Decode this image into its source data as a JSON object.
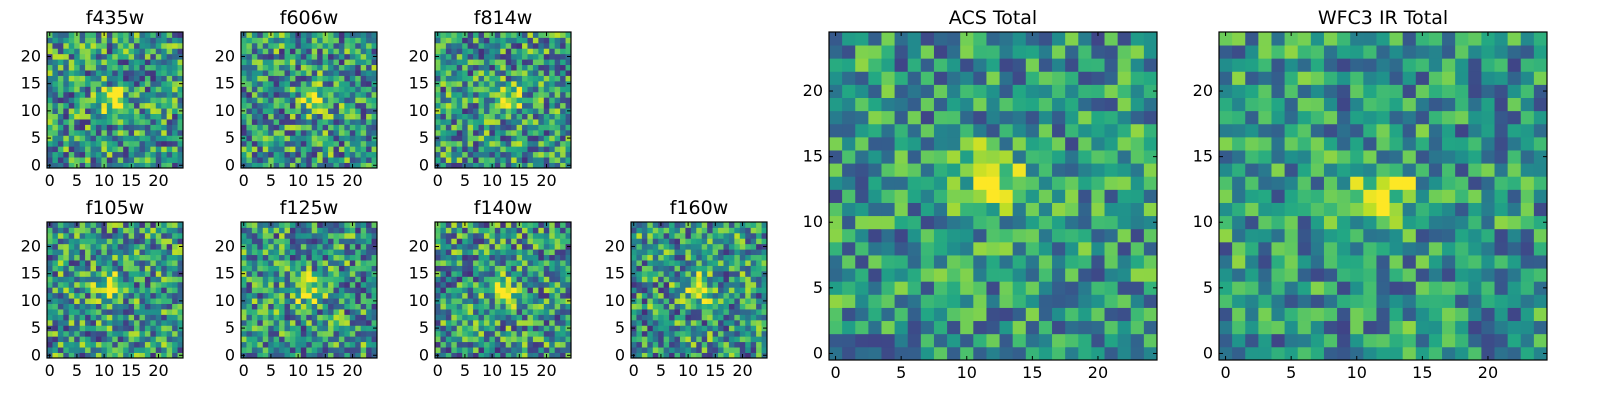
{
  "figure": {
    "background": "#ffffff",
    "colormap": "viridis"
  },
  "chart_data": [
    {
      "type": "heatmap",
      "title": "f435w",
      "xlim": [
        -0.5,
        24.5
      ],
      "ylim": [
        -0.5,
        24.5
      ],
      "xticks": [
        "0",
        "5",
        "10",
        "15",
        "20"
      ],
      "yticks": [
        "0",
        "5",
        "10",
        "15",
        "20"
      ],
      "grid": false,
      "peak": [
        12,
        12
      ],
      "noise": 0.55,
      "seed": 11
    },
    {
      "type": "heatmap",
      "title": "f606w",
      "xlim": [
        -0.5,
        24.5
      ],
      "ylim": [
        -0.5,
        24.5
      ],
      "xticks": [
        "0",
        "5",
        "10",
        "15",
        "20"
      ],
      "yticks": [
        "0",
        "5",
        "10",
        "15",
        "20"
      ],
      "grid": false,
      "peak": [
        13,
        12
      ],
      "noise": 0.55,
      "seed": 23
    },
    {
      "type": "heatmap",
      "title": "f814w",
      "xlim": [
        -0.5,
        24.5
      ],
      "ylim": [
        -0.5,
        24.5
      ],
      "xticks": [
        "0",
        "5",
        "10",
        "15",
        "20"
      ],
      "yticks": [
        "0",
        "5",
        "10",
        "15",
        "20"
      ],
      "grid": false,
      "peak": [
        13,
        12
      ],
      "noise": 0.55,
      "seed": 37
    },
    {
      "type": "heatmap",
      "title": "f105w",
      "xlim": [
        -0.5,
        24.5
      ],
      "ylim": [
        -0.5,
        24.5
      ],
      "xticks": [
        "0",
        "5",
        "10",
        "15",
        "20"
      ],
      "yticks": [
        "0",
        "5",
        "10",
        "15",
        "20"
      ],
      "grid": false,
      "peak": [
        11,
        13
      ],
      "noise": 0.55,
      "seed": 41
    },
    {
      "type": "heatmap",
      "title": "f125w",
      "xlim": [
        -0.5,
        24.5
      ],
      "ylim": [
        -0.5,
        24.5
      ],
      "xticks": [
        "0",
        "5",
        "10",
        "15",
        "20"
      ],
      "yticks": [
        "0",
        "5",
        "10",
        "15",
        "20"
      ],
      "grid": false,
      "peak": [
        12,
        12
      ],
      "noise": 0.55,
      "seed": 53
    },
    {
      "type": "heatmap",
      "title": "f140w",
      "xlim": [
        -0.5,
        24.5
      ],
      "ylim": [
        -0.5,
        24.5
      ],
      "xticks": [
        "0",
        "5",
        "10",
        "15",
        "20"
      ],
      "yticks": [
        "0",
        "5",
        "10",
        "15",
        "20"
      ],
      "grid": false,
      "peak": [
        12,
        12
      ],
      "noise": 0.55,
      "seed": 67
    },
    {
      "type": "heatmap",
      "title": "f160w",
      "xlim": [
        -0.5,
        24.5
      ],
      "ylim": [
        -0.5,
        24.5
      ],
      "xticks": [
        "0",
        "5",
        "10",
        "15",
        "20"
      ],
      "yticks": [
        "0",
        "5",
        "10",
        "15",
        "20"
      ],
      "grid": false,
      "peak": [
        12,
        12
      ],
      "noise": 0.55,
      "seed": 79
    },
    {
      "type": "heatmap",
      "title": "ACS Total",
      "xlim": [
        -0.5,
        24.5
      ],
      "ylim": [
        -0.5,
        24.5
      ],
      "xticks": [
        "0",
        "5",
        "10",
        "15",
        "20"
      ],
      "yticks": [
        "0",
        "5",
        "10",
        "15",
        "20"
      ],
      "grid": false,
      "peak": [
        12,
        13
      ],
      "noise": 0.45,
      "seed": 97
    },
    {
      "type": "heatmap",
      "title": "WFC3 IR Total",
      "xlim": [
        -0.5,
        24.5
      ],
      "ylim": [
        -0.5,
        24.5
      ],
      "xticks": [
        "0",
        "5",
        "10",
        "15",
        "20"
      ],
      "yticks": [
        "0",
        "5",
        "10",
        "15",
        "20"
      ],
      "grid": false,
      "peak": [
        12,
        12
      ],
      "noise": 0.45,
      "seed": 131
    }
  ]
}
